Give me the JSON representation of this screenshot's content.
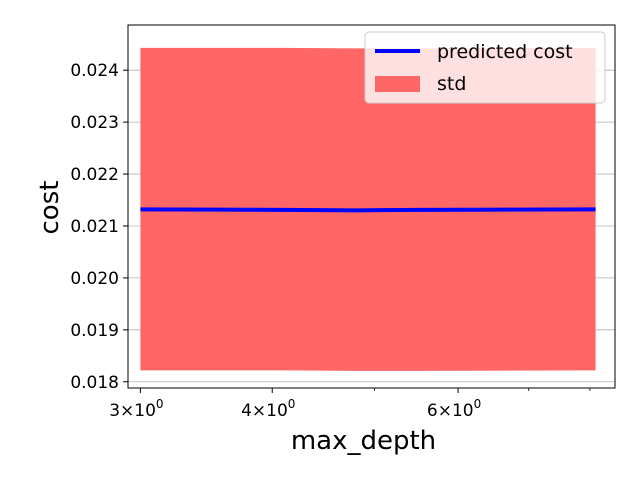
{
  "chart_data": {
    "type": "line",
    "xlabel": "max_depth",
    "ylabel": "cost",
    "xscale": "log",
    "xlim": [
      2.92,
      8.45
    ],
    "ylim": [
      0.01788,
      0.02487
    ],
    "x_ticks": [
      {
        "value": 3,
        "base": "3×10",
        "exp": "0"
      },
      {
        "value": 4,
        "base": "4×10",
        "exp": "0"
      },
      {
        "value": 6,
        "base": "6×10",
        "exp": "0"
      }
    ],
    "x_minor_ticks": [
      5,
      7,
      8
    ],
    "y_ticks": [
      {
        "value": 0.018,
        "label": "0.018"
      },
      {
        "value": 0.019,
        "label": "0.019"
      },
      {
        "value": 0.02,
        "label": "0.020"
      },
      {
        "value": 0.021,
        "label": "0.021"
      },
      {
        "value": 0.022,
        "label": "0.022"
      },
      {
        "value": 0.023,
        "label": "0.023"
      },
      {
        "value": 0.024,
        "label": "0.024"
      }
    ],
    "grid": "horizontal",
    "legend_position": "top-right",
    "series": [
      {
        "name": "predicted cost",
        "kind": "line",
        "color": "#0000ff",
        "x": [
          3,
          4.1,
          4.8,
          5.5,
          8.1
        ],
        "y": [
          0.02132,
          0.02131,
          0.0213,
          0.02131,
          0.02132
        ]
      },
      {
        "name": "std",
        "kind": "band",
        "color": "#ff6666",
        "x": [
          3,
          4.1,
          4.8,
          5.5,
          8.1
        ],
        "upper": [
          0.02443,
          0.02443,
          0.02442,
          0.02442,
          0.02443
        ],
        "lower": [
          0.01822,
          0.01822,
          0.01821,
          0.01821,
          0.01822
        ]
      }
    ]
  }
}
